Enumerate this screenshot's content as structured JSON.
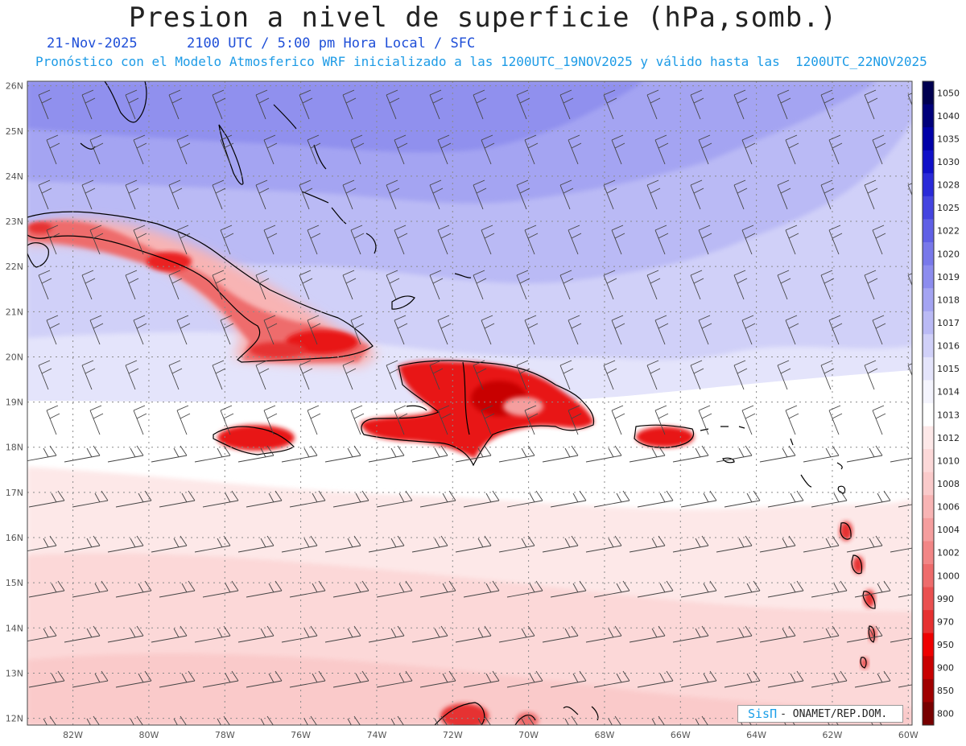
{
  "header": {
    "title": "Presion a nivel de superficie (hPa,somb.)",
    "date": "21-Nov-2025",
    "time_info": "2100 UTC / 5:00 pm Hora Local / SFC",
    "model_info": "Pronóstico con el Modelo Atmosferico WRF inicializado a las 1200UTC_19NOV2025 y válido hasta las  1200UTC_22NOV2025"
  },
  "map": {
    "lon_range": [
      -83.2,
      -59.9
    ],
    "lat_range": [
      11.85,
      26.1
    ],
    "lon_labels": [
      "82W",
      "80W",
      "78W",
      "76W",
      "74W",
      "72W",
      "70W",
      "68W",
      "66W",
      "64W",
      "62W",
      "60W"
    ],
    "lat_labels": [
      "26N",
      "25N",
      "24N",
      "23N",
      "22N",
      "21N",
      "20N",
      "19N",
      "18N",
      "17N",
      "16N",
      "15N",
      "14N",
      "13N",
      "12N"
    ]
  },
  "colorbar": {
    "labels": [
      "1050",
      "1040",
      "1035",
      "1030",
      "1028",
      "1025",
      "1022",
      "1020",
      "1019",
      "1018",
      "1017",
      "1016",
      "1015",
      "1014",
      "1013",
      "1012",
      "1010",
      "1008",
      "1006",
      "1004",
      "1002",
      "1000",
      "990",
      "970",
      "950",
      "900",
      "850",
      "800"
    ],
    "colors": [
      "#000050",
      "#00007a",
      "#0000a8",
      "#1010c8",
      "#2a2ad8",
      "#4444e0",
      "#6060e6",
      "#7878ea",
      "#8c8cee",
      "#a4a4f2",
      "#babaf5",
      "#d0d0f8",
      "#e4e4fb",
      "#f4f4fd",
      "#ffffff",
      "#fde8e8",
      "#fcd8d8",
      "#facaca",
      "#f8b4b4",
      "#f59e9e",
      "#f28686",
      "#ee6c6c",
      "#ea5050",
      "#e63030",
      "#ee0000",
      "#c80000",
      "#a00000",
      "#780000"
    ]
  },
  "credit": {
    "logo": "SisΠ",
    "text": "- ONAMET/REP.DOM."
  }
}
